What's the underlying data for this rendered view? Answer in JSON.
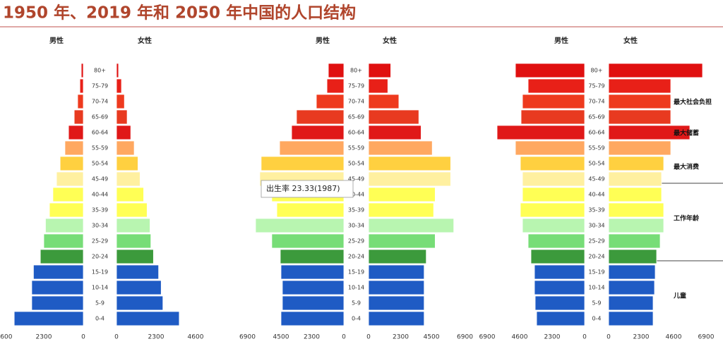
{
  "title": "1950 年、2019 年和 2050 年中国的人口结构",
  "chart_data": [
    {
      "type": "pyramid",
      "categories": [
        "0-4",
        "5-9",
        "10-14",
        "15-19",
        "20-24",
        "25-29",
        "30-34",
        "35-39",
        "40-44",
        "45-49",
        "50-54",
        "55-59",
        "60-64",
        "65-69",
        "70-74",
        "75-79",
        "80+"
      ],
      "series": [
        {
          "name": "男性",
          "values": [
            4020,
            3000,
            3000,
            2900,
            2500,
            2300,
            2200,
            1970,
            1770,
            1560,
            1350,
            1070,
            860,
            530,
            330,
            200,
            120
          ]
        },
        {
          "name": "女性",
          "values": [
            3650,
            2700,
            2600,
            2450,
            2150,
            2000,
            1950,
            1780,
            1580,
            1370,
            1250,
            1030,
            830,
            620,
            460,
            290,
            120
          ]
        }
      ],
      "colors": [
        "#1f5bc4",
        "#1f5bc4",
        "#1f5bc4",
        "#1f5bc4",
        "#3c9a3c",
        "#77dd77",
        "#b8f5b0",
        "#ffff55",
        "#ffff55",
        "#fff0a0",
        "#ffd040",
        "#ffa860",
        "#e01818",
        "#e83a20",
        "#ee3a1e",
        "#e82018",
        "#e01010"
      ],
      "xlim": [
        0,
        4600
      ],
      "xticks": [
        0,
        2300,
        4600
      ]
    },
    {
      "type": "pyramid",
      "categories": [
        "0-4",
        "5-9",
        "10-14",
        "15-19",
        "20-24",
        "25-29",
        "30-34",
        "35-39",
        "40-44",
        "45-49",
        "50-54",
        "55-59",
        "60-64",
        "65-69",
        "70-74",
        "75-79",
        "80+"
      ],
      "series": [
        {
          "name": "男性",
          "values": [
            4500,
            4400,
            4400,
            4500,
            4550,
            5160,
            6320,
            4800,
            5160,
            6020,
            5920,
            4600,
            3740,
            3390,
            1970,
            1210,
            1110
          ]
        },
        {
          "name": "女性",
          "values": [
            3980,
            3980,
            3980,
            3980,
            4130,
            4770,
            6100,
            4660,
            4770,
            5880,
            5880,
            4560,
            3760,
            3600,
            2170,
            1380,
            1590
          ]
        }
      ],
      "colors": [
        "#1f5bc4",
        "#1f5bc4",
        "#1f5bc4",
        "#1f5bc4",
        "#3c9a3c",
        "#77dd77",
        "#b8f5b0",
        "#ffff55",
        "#ffff55",
        "#fff0a0",
        "#ffd040",
        "#ffa860",
        "#e01818",
        "#e83a20",
        "#ee3a1e",
        "#e82018",
        "#e01010"
      ],
      "xlim": [
        0,
        6900
      ],
      "xticks": [
        0,
        2300,
        4500,
        6900
      ],
      "annotations": [
        "出生率 23.33(1987)"
      ]
    },
    {
      "type": "pyramid",
      "categories": [
        "0-4",
        "5-9",
        "10-14",
        "15-19",
        "20-24",
        "25-29",
        "30-34",
        "35-39",
        "40-44",
        "45-49",
        "50-54",
        "55-59",
        "60-64",
        "65-69",
        "70-74",
        "75-79",
        "80+"
      ],
      "series": [
        {
          "name": "男性",
          "values": [
            3400,
            3500,
            3550,
            3550,
            3800,
            4000,
            4400,
            4550,
            4400,
            4400,
            4550,
            4900,
            6200,
            4500,
            4400,
            4000,
            4900
          ]
        },
        {
          "name": "女性",
          "values": [
            3150,
            3150,
            3250,
            3300,
            3400,
            3650,
            3900,
            3900,
            3750,
            3750,
            3900,
            4400,
            5750,
            4400,
            4400,
            4400,
            6650
          ]
        }
      ],
      "colors": [
        "#1f5bc4",
        "#1f5bc4",
        "#1f5bc4",
        "#1f5bc4",
        "#3c9a3c",
        "#77dd77",
        "#b8f5b0",
        "#ffff55",
        "#ffff55",
        "#fff0a0",
        "#ffd040",
        "#ffa860",
        "#e01818",
        "#e83a20",
        "#ee3a1e",
        "#e82018",
        "#e01010"
      ],
      "xlim": [
        0,
        6900
      ],
      "xticks": [
        0,
        2300,
        4600,
        6900
      ],
      "annotations": [
        "最大社会负担",
        "最大储蓄",
        "最大消费",
        "工作年龄",
        "儿童"
      ]
    }
  ]
}
